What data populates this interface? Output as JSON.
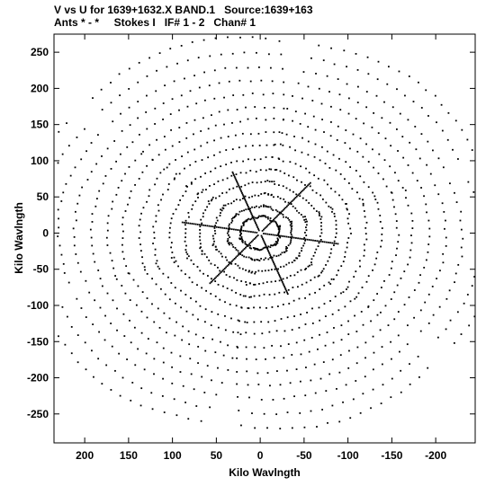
{
  "chart_data": {
    "type": "scatter",
    "title_line1": "V vs U for 1639+1632.X BAND.1   Source:1639+163",
    "title_line2": "Ants * - *     Stokes I   IF# 1 - 2   Chan# 1",
    "xlabel": "Kilo Wavlngth",
    "ylabel": "Kilo Wavlngth",
    "xlim": [
      235,
      -245
    ],
    "ylim": [
      -290,
      275
    ],
    "x_ticks": [
      200,
      150,
      100,
      50,
      0,
      -50,
      -100,
      -150,
      -200
    ],
    "y_ticks": [
      250,
      200,
      150,
      100,
      50,
      0,
      -50,
      -100,
      -150,
      -200,
      -250
    ],
    "x_tick_labels": [
      "200",
      "150",
      "100",
      "50",
      "0",
      "-50",
      "-100",
      "-150",
      "-200"
    ],
    "y_tick_labels": [
      "250",
      "200",
      "150",
      "100",
      "50",
      "0",
      "-50",
      "-100",
      "-150",
      "-200",
      "-250"
    ],
    "grid": false,
    "marker": "dot",
    "color": "#000000",
    "tracks": {
      "arm_angles_deg": [
        9.5,
        69.5,
        129.5,
        189.5,
        249.5,
        309.5
      ],
      "arm_max_radius": 275,
      "baseline_fractions": [
        0.08,
        0.13,
        0.19,
        0.25,
        0.31,
        0.37,
        0.44,
        0.5,
        0.57,
        0.63,
        0.7,
        0.77,
        0.84,
        0.92,
        1.0
      ],
      "samples_per_track": 18,
      "track_half_width": 0.55
    }
  }
}
